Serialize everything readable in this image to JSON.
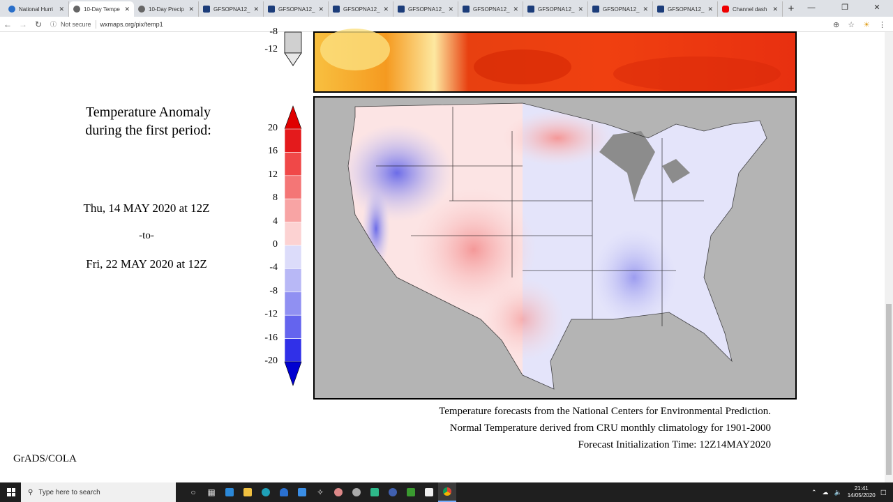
{
  "browser": {
    "tabs": [
      {
        "label": "National Hurri",
        "icon": "noaa-icon"
      },
      {
        "label": "10-Day Tempe",
        "icon": "globe-icon",
        "active": true
      },
      {
        "label": "10-Day Precip",
        "icon": "globe-icon"
      },
      {
        "label": "GFSOPNA12_",
        "icon": "grads-icon"
      },
      {
        "label": "GFSOPNA12_",
        "icon": "grads-icon"
      },
      {
        "label": "GFSOPNA12_",
        "icon": "grads-icon"
      },
      {
        "label": "GFSOPNA12_",
        "icon": "grads-icon"
      },
      {
        "label": "GFSOPNA12_",
        "icon": "grads-icon"
      },
      {
        "label": "GFSOPNA12_",
        "icon": "grads-icon"
      },
      {
        "label": "GFSOPNA12_",
        "icon": "grads-icon"
      },
      {
        "label": "GFSOPNA12_",
        "icon": "grads-icon"
      },
      {
        "label": "Channel dash",
        "icon": "youtube-icon"
      }
    ],
    "security": "Not secure",
    "url": "wxmaps.org/pix/temp1"
  },
  "page": {
    "title_line1": "Temperature Anomaly",
    "title_line2": "during the first period:",
    "start": "Thu, 14 MAY 2020 at 12Z",
    "to": "-to-",
    "end": "Fri, 22 MAY 2020 at 12Z",
    "top_colorbar_labels": [
      "-8",
      "-12"
    ],
    "colorbar_labels": [
      "20",
      "16",
      "12",
      "8",
      "4",
      "0",
      "-4",
      "-8",
      "-12",
      "-16",
      "-20"
    ],
    "colorbar_colors": [
      "#e41a1c",
      "#f04848",
      "#f47676",
      "#f8a4a4",
      "#fcd2d2",
      "#dcdcfa",
      "#b8b8f6",
      "#9090f2",
      "#6464ee",
      "#3030e8"
    ],
    "colorbar_top_arrow": "#e00000",
    "colorbar_bottom_arrow": "#0000d0",
    "footer_line1": "Temperature forecasts from the National Centers for Environmental Prediction.",
    "footer_line2": "Normal Temperature derived from CRU monthly climatology for 1901-2000",
    "footer_line3": "Forecast Initialization Time: 12Z14MAY2020",
    "credit": "GrADS/COLA"
  },
  "taskbar": {
    "search_placeholder": "Type here to search",
    "time": "21:41",
    "date": "14/05/2020"
  }
}
